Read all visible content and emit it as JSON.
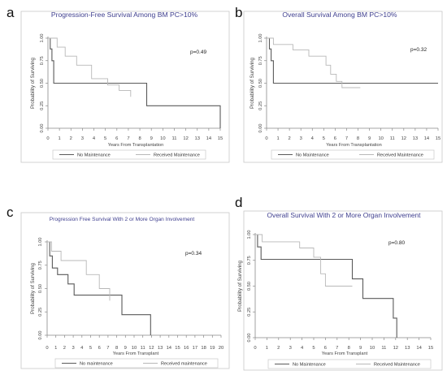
{
  "panel_labels": [
    "a",
    "b",
    "c",
    "d"
  ],
  "colors": {
    "no_maintenance": "#5a5a5a",
    "received_maintenance": "#b8b8b8",
    "title": "#3f3f8f",
    "axis": "#888888",
    "frame": "#c8c8c8"
  },
  "chart_data": [
    {
      "type": "line",
      "title": "Progression-Free Survival Among BM PC>10%",
      "xlabel": "Years From Transplantation",
      "ylabel": "Probability of Surviving",
      "annotation": "p=0.49",
      "xlim": [
        0,
        15
      ],
      "ylim": [
        0,
        1
      ],
      "x_ticks": [
        "0",
        "1",
        "2",
        "3",
        "4",
        "5",
        "6",
        "7",
        "8",
        "9",
        "10",
        "11",
        "12",
        "13",
        "14",
        "15"
      ],
      "y_ticks": [
        "0.00",
        "0.25",
        "0.50",
        "0.75",
        "1.00"
      ],
      "legend": {
        "placement": "bottom",
        "entries": [
          "No Maintenance",
          "Received Maintenance"
        ]
      },
      "series": [
        {
          "name": "No Maintenance",
          "x": [
            0,
            0.2,
            0.35,
            0.5,
            8.6,
            15
          ],
          "y": [
            1.0,
            0.88,
            0.75,
            0.5,
            0.25,
            0.0
          ]
        },
        {
          "name": "Received Maintenance",
          "x": [
            0,
            0.8,
            1.5,
            2.5,
            3.8,
            5.2,
            6.2,
            7.2
          ],
          "y": [
            1.0,
            0.9,
            0.8,
            0.7,
            0.55,
            0.48,
            0.42,
            0.35
          ]
        }
      ]
    },
    {
      "type": "line",
      "title": "Overall Survival Among BM PC>10%",
      "xlabel": "Years From Transplantation",
      "ylabel": "Probability of Surviving",
      "annotation": "p=0.32",
      "xlim": [
        0,
        15
      ],
      "ylim": [
        0,
        1
      ],
      "x_ticks": [
        "0",
        "1",
        "2",
        "3",
        "4",
        "5",
        "6",
        "7",
        "8",
        "9",
        "10",
        "11",
        "12",
        "13",
        "14",
        "15"
      ],
      "y_ticks": [
        "0.00",
        "0.25",
        "0.50",
        "0.75",
        "1.00"
      ],
      "legend": {
        "placement": "bottom",
        "entries": [
          "No Maintenance",
          "Received Maintenance"
        ]
      },
      "series": [
        {
          "name": "No Maintenance",
          "x": [
            0,
            0.25,
            0.4,
            0.6,
            15
          ],
          "y": [
            1.0,
            0.88,
            0.75,
            0.5,
            0.5
          ]
        },
        {
          "name": "Received Maintenance",
          "x": [
            0,
            0.6,
            2.3,
            3.7,
            5.2,
            5.6,
            6.1,
            6.6,
            8.2
          ],
          "y": [
            1.0,
            0.93,
            0.87,
            0.8,
            0.7,
            0.6,
            0.52,
            0.45,
            0.45
          ]
        }
      ]
    },
    {
      "type": "line",
      "title": "Progression Free Survival With 2 or More Organ Involvement",
      "xlabel": "Years From Transplant",
      "ylabel": "Probability of Surviving",
      "annotation": "p=0.34",
      "xlim": [
        0,
        20
      ],
      "ylim": [
        0,
        1
      ],
      "x_ticks": [
        "0",
        "1",
        "2",
        "3",
        "4",
        "5",
        "6",
        "7",
        "8",
        "9",
        "10",
        "11",
        "12",
        "13",
        "14",
        "15",
        "16",
        "17",
        "18",
        "19",
        "20"
      ],
      "y_ticks": [
        "0.00",
        "0.25",
        "0.50",
        "0.75",
        "1.00"
      ],
      "legend": {
        "placement": "bottom",
        "entries": [
          "No maintenance",
          "Received maintenance"
        ]
      },
      "series": [
        {
          "name": "No maintenance",
          "x": [
            0,
            0.3,
            0.6,
            1.2,
            2.4,
            3.1,
            8.6,
            11.9
          ],
          "y": [
            1.0,
            0.85,
            0.72,
            0.65,
            0.55,
            0.43,
            0.22,
            0.0
          ]
        },
        {
          "name": "Received maintenance",
          "x": [
            0,
            0.5,
            1.6,
            4.5,
            6.0,
            7.2
          ],
          "y": [
            1.0,
            0.9,
            0.8,
            0.65,
            0.5,
            0.37
          ]
        }
      ]
    },
    {
      "type": "line",
      "title": "Overall Survival With 2 or More Organ Involvement",
      "xlabel": "Years From Transplant",
      "ylabel": "Probability of Surviving",
      "annotation": "p=0.80",
      "xlim": [
        0,
        15
      ],
      "ylim": [
        0,
        1
      ],
      "x_ticks": [
        "0",
        "1",
        "2",
        "3",
        "4",
        "5",
        "6",
        "7",
        "8",
        "9",
        "10",
        "11",
        "12",
        "13",
        "14",
        "15"
      ],
      "y_ticks": [
        "0.00",
        "0.25",
        "0.50",
        "0.75",
        "1.00"
      ],
      "legend": {
        "placement": "bottom",
        "entries": [
          "No Maintenance",
          "Received Maintenance"
        ]
      },
      "series": [
        {
          "name": "No Maintenance",
          "x": [
            0,
            0.2,
            0.5,
            8.3,
            9.2,
            11.8,
            12.1
          ],
          "y": [
            1.0,
            0.88,
            0.76,
            0.57,
            0.38,
            0.19,
            0.0
          ]
        },
        {
          "name": "Received Maintenance",
          "x": [
            0,
            0.6,
            3.8,
            5.0,
            5.6,
            6.0,
            8.3
          ],
          "y": [
            1.0,
            0.93,
            0.87,
            0.78,
            0.62,
            0.5,
            0.5
          ]
        }
      ]
    }
  ]
}
